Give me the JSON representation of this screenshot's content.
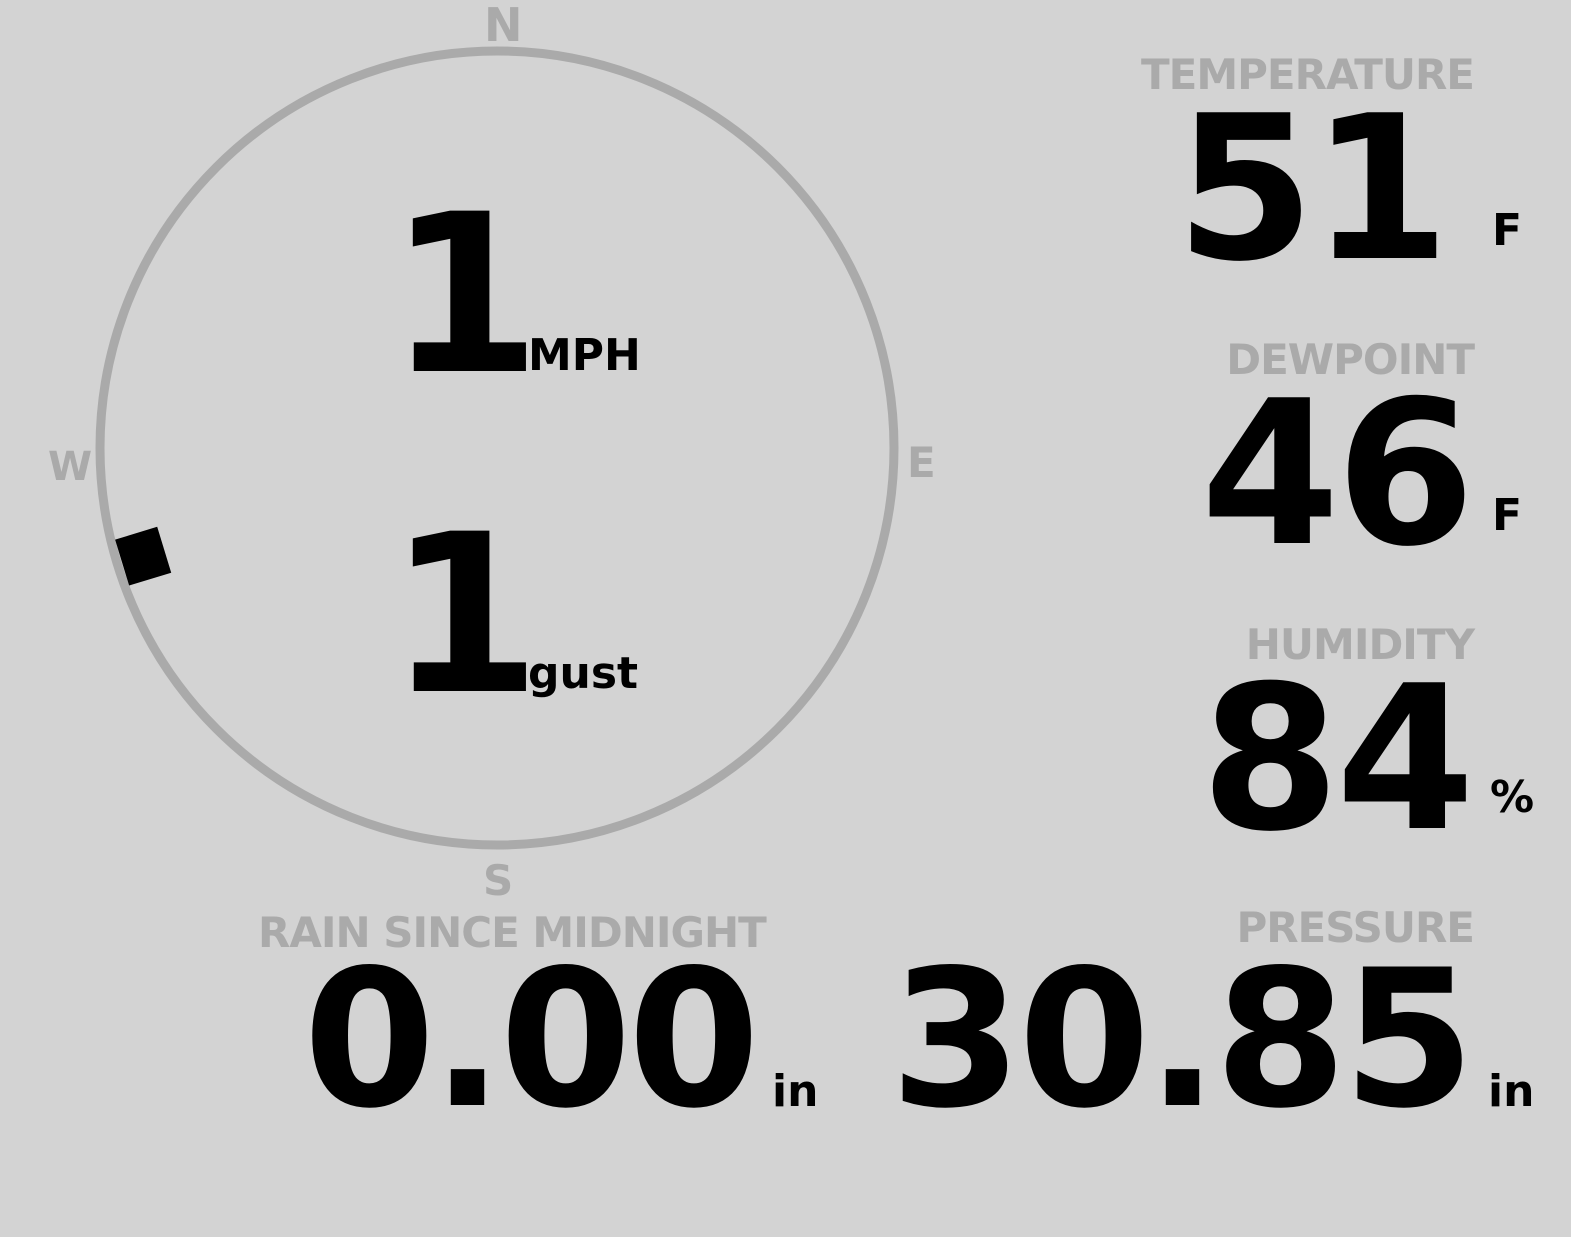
{
  "wind": {
    "speed": "1",
    "speed_unit": "MPH",
    "gust": "1",
    "gust_unit": "gust",
    "direction_deg": 253,
    "compass": {
      "n": "N",
      "e": "E",
      "s": "S",
      "w": "W"
    }
  },
  "temperature": {
    "label": "TEMPERATURE",
    "value": "51",
    "unit": "F"
  },
  "dewpoint": {
    "label": "DEWPOINT",
    "value": "46",
    "unit": "F"
  },
  "humidity": {
    "label": "HUMIDITY",
    "value": "84",
    "unit": "%"
  },
  "rain": {
    "label": "RAIN SINCE MIDNIGHT",
    "value": "0.00",
    "unit": "in"
  },
  "pressure": {
    "label": "PRESSURE",
    "value": "30.85",
    "unit": "in"
  },
  "colors": {
    "background": "#d3d3d3",
    "label": "#aaaaaa",
    "value": "#000000"
  }
}
